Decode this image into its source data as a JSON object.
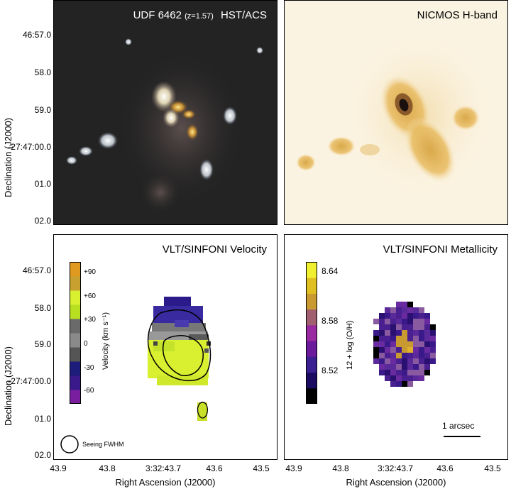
{
  "panels": {
    "acs": {
      "title_main": "UDF 6462",
      "title_z": "(z=1.57)",
      "title_inst": "HST/ACS"
    },
    "nicmos": {
      "title": "NICMOS H-band"
    },
    "velocity": {
      "title": "VLT/SINFONI Velocity",
      "colorbar": {
        "label": "Velocity (km s⁻¹)",
        "ticks": [
          "+90",
          "+60",
          "+30",
          "0",
          "-30",
          "-60"
        ],
        "colors": [
          "#7a1ea0",
          "#3a1a8a",
          "#1c1c7a",
          "#555555",
          "#8a8a8a",
          "#6a6a6a",
          "#b8e020",
          "#d8f030",
          "#c8a030",
          "#e09a20"
        ]
      },
      "seeing_label": "Seeing FWHM"
    },
    "metallicity": {
      "title": "VLT/SINFONI Metallicity",
      "colorbar": {
        "label": "12 + log (O/H)",
        "ticks": [
          "8.64",
          "8.58",
          "8.52"
        ],
        "colors": [
          "#000000",
          "#1a0a60",
          "#3a2090",
          "#6a1a9a",
          "#9a2aa0",
          "#a06070",
          "#c89a30",
          "#e0c020",
          "#f0f030"
        ]
      },
      "scalebar_label": "1 arcsec"
    }
  },
  "axes": {
    "y_ticks_top": [
      "46:57.0",
      "58.0",
      "59.0",
      "-27:47:00.0",
      "01.0",
      "02.0"
    ],
    "y_ticks_bottom": [
      "46:57.0",
      "58.0",
      "59.0",
      "-27:47:00.0",
      "01.0",
      "02.0"
    ],
    "x_ticks_left": [
      "43.9",
      "43.8",
      "3:32:43.7",
      "43.6",
      "43.5"
    ],
    "x_ticks_right": [
      "43.9",
      "43.8",
      "3:32:43.7",
      "43.6",
      "43.5"
    ],
    "y_title": "Declination (J2000)",
    "x_title": "Right Ascension (J2000)"
  }
}
